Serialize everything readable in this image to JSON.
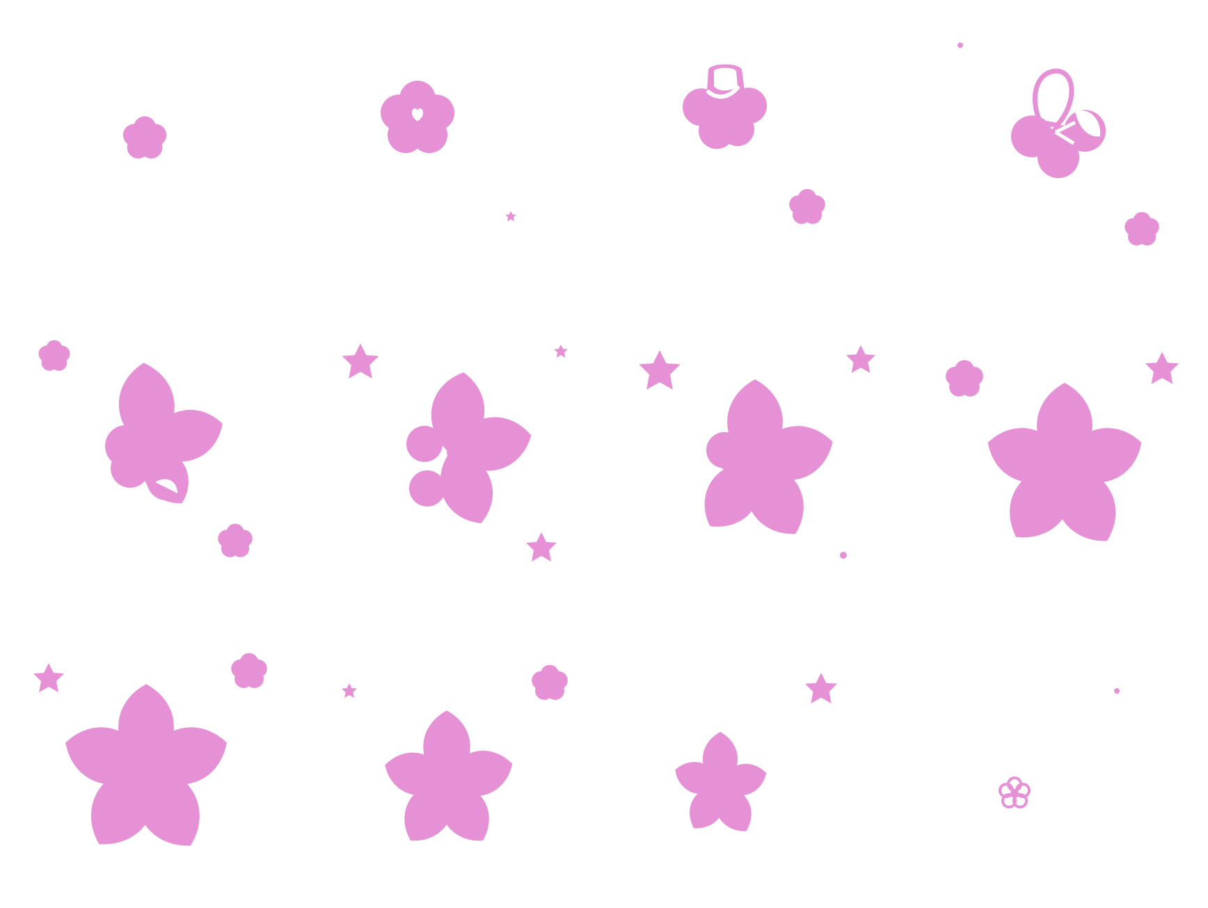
{
  "scene": {
    "description_free": true,
    "background": "#ffffff",
    "ink": "#e691d5"
  }
}
